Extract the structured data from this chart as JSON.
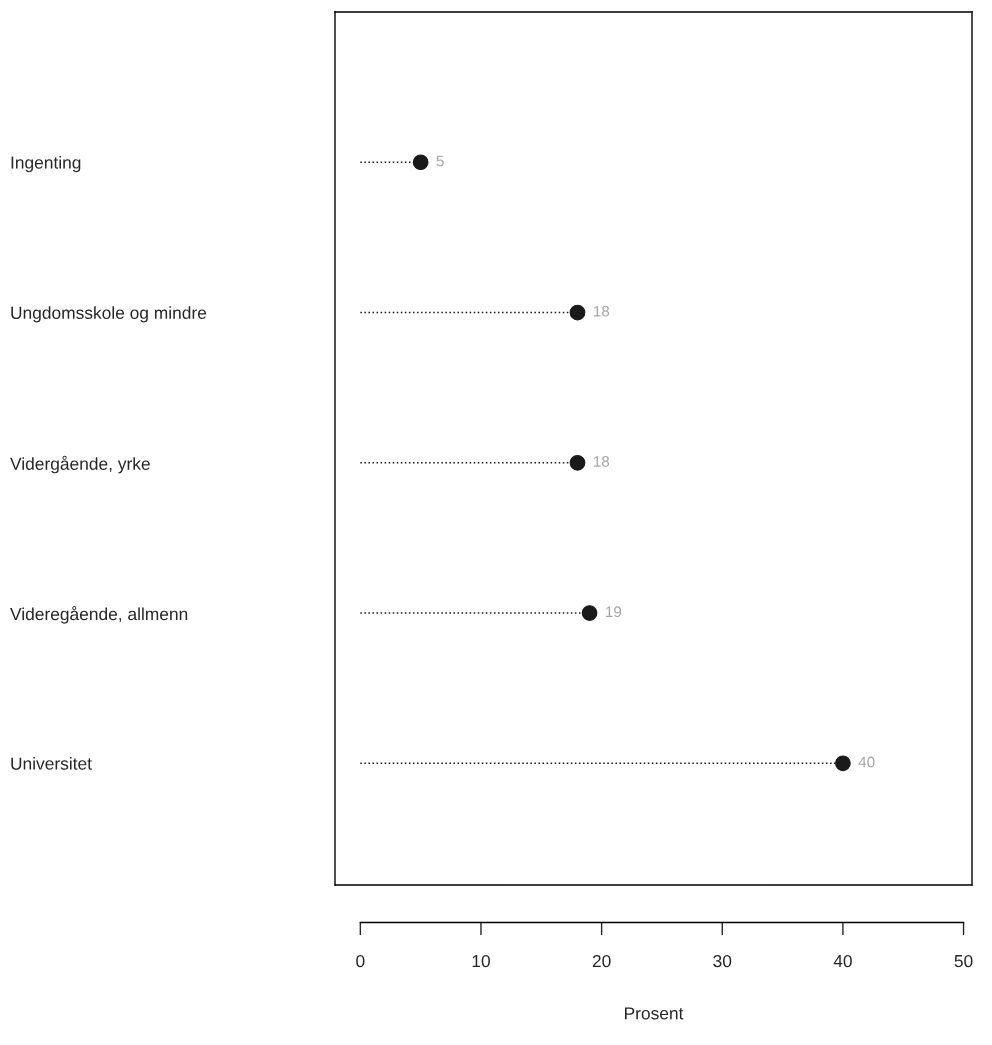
{
  "chart_data": {
    "type": "lollipop",
    "orientation": "horizontal",
    "xlabel": "Prosent",
    "categories": [
      "Ingenting",
      "Ungdomsskole og mindre",
      "Vidergående, yrke",
      "Videregående, allmenn",
      "Universitet"
    ],
    "values": [
      5,
      18,
      18,
      19,
      40
    ],
    "color": "#1a1a1a",
    "xlim": [
      -2.1,
      50.7
    ],
    "xticks": [
      0,
      10,
      20,
      30,
      40,
      50
    ],
    "data_labels": true,
    "marker": "circle",
    "line_style": "dotted"
  }
}
